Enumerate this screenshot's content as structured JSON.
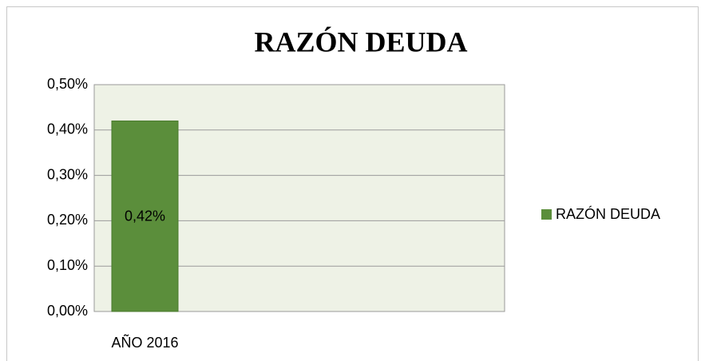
{
  "chart_data": {
    "type": "bar",
    "title": "RAZÓN DEUDA",
    "categories": [
      "AÑO 2016"
    ],
    "series": [
      {
        "name": "RAZÓN DEUDA",
        "color": "#5b8e3b",
        "values": [
          0.42
        ],
        "value_labels": [
          "0,42%"
        ]
      }
    ],
    "ylim": [
      0,
      0.5
    ],
    "yticks": [
      {
        "value": 0,
        "label": "0,00%"
      },
      {
        "value": 0.1,
        "label": "0,10%"
      },
      {
        "value": 0.2,
        "label": "0,20%"
      },
      {
        "value": 0.3,
        "label": "0,30%"
      },
      {
        "value": 0.4,
        "label": "0,40%"
      },
      {
        "value": 0.5,
        "label": "0,50%"
      }
    ],
    "grid": true,
    "legend": "right"
  }
}
